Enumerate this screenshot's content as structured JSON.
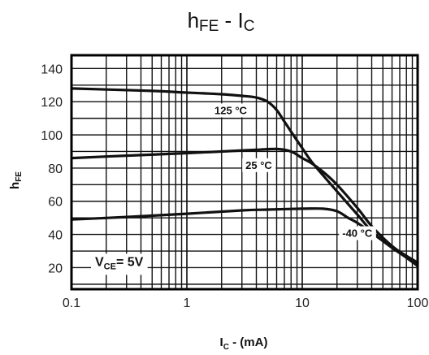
{
  "chart_data": {
    "type": "line",
    "title": {
      "main_h": "h",
      "main_h_sub": "FE",
      "dash": "-",
      "main_i": "I",
      "main_i_sub": "C"
    },
    "xlabel": {
      "main": "I",
      "sub": "C",
      "rest": " - (mA)"
    },
    "ylabel": {
      "main": "h",
      "sub": "FE"
    },
    "x_scale": "log",
    "xlim": [
      0.1,
      100
    ],
    "ylim": [
      7,
      148
    ],
    "x_ticks": [
      {
        "value": 0.1,
        "label": "0.1"
      },
      {
        "value": 1,
        "label": "1"
      },
      {
        "value": 10,
        "label": "10"
      },
      {
        "value": 100,
        "label": "100"
      }
    ],
    "y_ticks": [
      {
        "value": 20,
        "label": "20"
      },
      {
        "value": 40,
        "label": "40"
      },
      {
        "value": 60,
        "label": "60"
      },
      {
        "value": 80,
        "label": "80"
      },
      {
        "value": 100,
        "label": "100"
      },
      {
        "value": 120,
        "label": "120"
      },
      {
        "value": 140,
        "label": "140"
      }
    ],
    "y_minor_ticks": [
      10,
      30,
      50,
      70,
      90,
      110,
      130
    ],
    "grid": true,
    "series": [
      {
        "name": "125 °C",
        "x": [
          0.1,
          0.5,
          1,
          2,
          3,
          4,
          5,
          6,
          7,
          8,
          10,
          12,
          15,
          20,
          30,
          40,
          60,
          80,
          100
        ],
        "y": [
          128,
          126.5,
          125.5,
          124.5,
          123.5,
          122.5,
          120,
          115,
          108,
          102,
          92,
          84,
          76,
          66,
          52,
          42,
          32,
          27,
          23
        ]
      },
      {
        "name": "25 °C",
        "x": [
          0.1,
          0.3,
          1,
          2,
          4,
          6,
          8,
          10,
          12,
          15,
          20,
          30,
          40,
          60,
          80,
          100
        ],
        "y": [
          86,
          87.5,
          89,
          90,
          91,
          91.5,
          90,
          86,
          83,
          78,
          70,
          56,
          45,
          33,
          27,
          23
        ]
      },
      {
        "name": "-40 °C",
        "x": [
          0.1,
          0.3,
          1,
          3,
          5,
          10,
          15,
          20,
          25,
          30,
          40,
          60,
          80,
          100
        ],
        "y": [
          49,
          50.5,
          52.5,
          54.5,
          55,
          55.5,
          55.5,
          54,
          50,
          47,
          41,
          32,
          26,
          21
        ]
      }
    ],
    "annotations": [
      {
        "text": "125 °C",
        "series": 0,
        "x": 2.4,
        "y": 115
      },
      {
        "text": "25 °C",
        "series": 1,
        "x": 4.2,
        "y": 82
      },
      {
        "text": "-40 °C",
        "series": 2,
        "x": 30,
        "y": 41
      }
    ],
    "note": {
      "main_v": "V",
      "v_sub": "CE",
      "rest": "= 5V",
      "x": 0.16,
      "y": 24
    }
  }
}
